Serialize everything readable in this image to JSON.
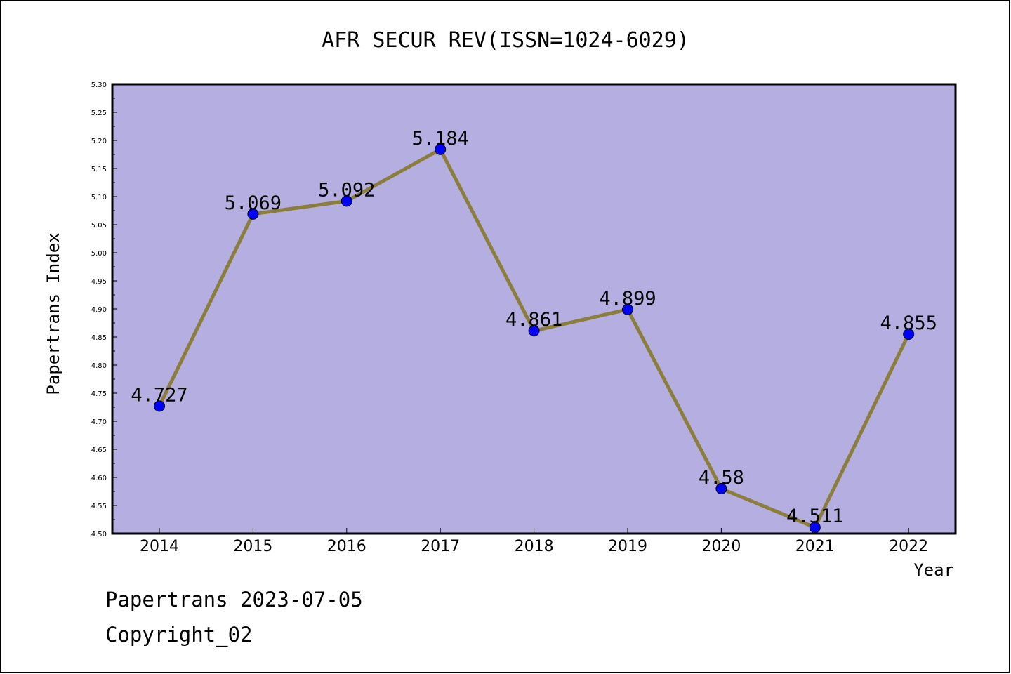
{
  "footer": {
    "line1": "Papertrans 2023-07-05",
    "line2": "Copyright_02"
  },
  "chart_data": {
    "type": "line",
    "title": "AFR SECUR REV(ISSN=1024-6029)",
    "xlabel": "Year",
    "ylabel": "Papertrans Index",
    "categories": [
      "2014",
      "2015",
      "2016",
      "2017",
      "2018",
      "2019",
      "2020",
      "2021",
      "2022"
    ],
    "series": [
      {
        "values": [
          4.727,
          5.069,
          5.092,
          5.184,
          4.861,
          4.899,
          4.58,
          4.511,
          4.855
        ],
        "labels": [
          "4.727",
          "5.069",
          "5.092",
          "5.184",
          "4.861",
          "4.899",
          "4.58",
          "4.511",
          "4.855"
        ]
      }
    ],
    "ylim": [
      4.5,
      5.3
    ],
    "yticks": [
      "4.50",
      "4.55",
      "4.60",
      "4.65",
      "4.70",
      "4.75",
      "4.80",
      "4.85",
      "4.90",
      "4.95",
      "5.00",
      "5.05",
      "5.10",
      "5.15",
      "5.20",
      "5.25",
      "5.30"
    ],
    "grid": false,
    "colors": {
      "plot_background": "#b5aee1",
      "line": "#8b7d3a",
      "marker": "#0000ff"
    }
  }
}
